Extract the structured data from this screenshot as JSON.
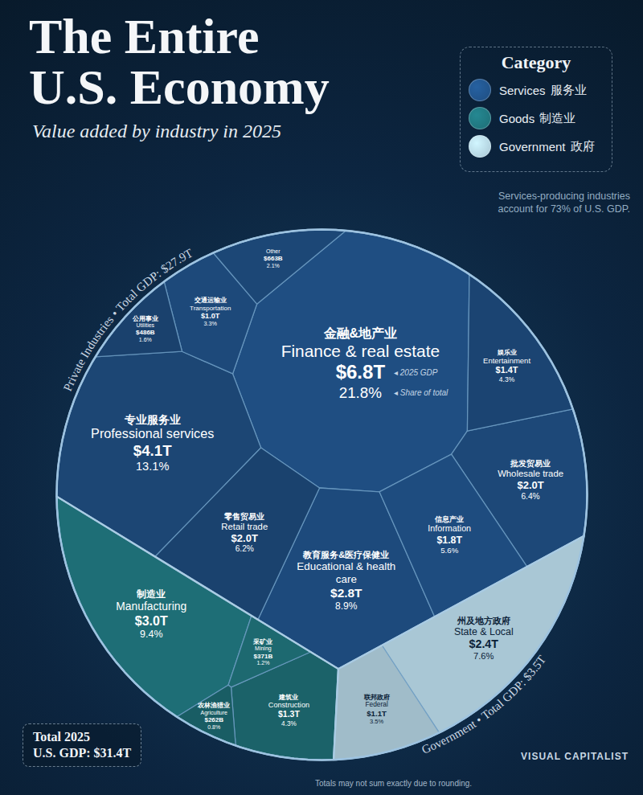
{
  "chart_data": {
    "type": "voronoi_treemap",
    "title": "The Entire U.S. Economy",
    "subtitle": "Value added by industry in 2025",
    "legend": "top-right",
    "legend_title": "Category",
    "data_labels": true,
    "annotation": "Services-producing industries account for 73% of U.S. GDP.",
    "arc_labels": [
      "Private Industries • Total GDP: $27.9T",
      "Government • Total GDP: $3.5T"
    ],
    "key_labels": [
      "◂ 2025 GDP",
      "◂ Share of total"
    ],
    "total_label": [
      "Total 2025",
      "U.S. GDP: $31.4T"
    ],
    "note": "Totals may not sum exactly due to rounding.",
    "credit": "VISUAL CAPITALIST",
    "series": [
      {
        "name": "Services",
        "name_zh": "服务业",
        "color": "#1f4e82",
        "categories": [
          "Finance & real estate",
          "Professional services",
          "Educational & health care",
          "Retail trade",
          "Wholesale trade",
          "Information",
          "Entertainment",
          "Transportation",
          "Utilities",
          "Other"
        ],
        "categories_zh": [
          "金融&地产业",
          "专业服务业",
          "教育服务&医疗保健业",
          "零售贸易业",
          "批发贸易业",
          "信息产业",
          "娱乐业",
          "交通运输业",
          "公用事业",
          null
        ],
        "values": [
          6.8,
          4.1,
          2.8,
          2.0,
          2.0,
          1.8,
          1.4,
          1.0,
          0.486,
          0.663
        ],
        "value_labels": [
          "$6.8T",
          "$4.1T",
          "$2.8T",
          "$2.0T",
          "$2.0T",
          "$1.8T",
          "$1.4T",
          "$1.0T",
          "$486B",
          "$663B"
        ],
        "shares": [
          21.8,
          13.1,
          8.9,
          6.2,
          6.4,
          5.6,
          4.3,
          3.3,
          1.6,
          2.1
        ],
        "share_labels": [
          "21.8%",
          "13.1%",
          "8.9%",
          "6.2%",
          "6.4%",
          "5.6%",
          "4.3%",
          "3.3%",
          "1.6%",
          "2.1%"
        ]
      },
      {
        "name": "Goods",
        "name_zh": "制造业",
        "color": "#1e6e76",
        "categories": [
          "Manufacturing",
          "Construction",
          "Mining",
          "Agriculture"
        ],
        "categories_zh": [
          "制造业",
          "建筑业",
          "采矿业",
          "农林渔猎业"
        ],
        "values": [
          3.0,
          1.3,
          0.371,
          0.262
        ],
        "value_labels": [
          "$3.0T",
          "$1.3T",
          "$371B",
          "$262B"
        ],
        "shares": [
          9.4,
          4.3,
          1.2,
          0.8
        ],
        "share_labels": [
          "9.4%",
          "4.3%",
          "1.2%",
          "0.8%"
        ]
      },
      {
        "name": "Government",
        "name_zh": "政府",
        "color": "#a9c7d5",
        "categories": [
          "State & Local",
          "Federal"
        ],
        "categories_zh": [
          "州及地方政府",
          "联邦政府"
        ],
        "values": [
          2.4,
          1.1
        ],
        "value_labels": [
          "$2.4T",
          "$1.1T"
        ],
        "shares": [
          7.6,
          3.5
        ],
        "share_labels": [
          "7.6%",
          "3.5%"
        ]
      }
    ]
  }
}
